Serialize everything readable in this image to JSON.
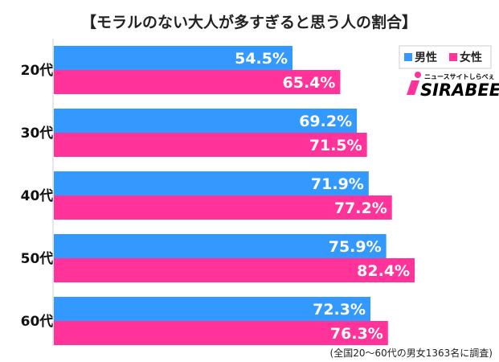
{
  "chart_data": {
    "type": "bar",
    "orientation": "horizontal",
    "title": "【モラルのない大人が多すぎると思う人の割合】",
    "categories": [
      "20代",
      "30代",
      "40代",
      "50代",
      "60代"
    ],
    "series": [
      {
        "name": "男性",
        "color": "#3399ff",
        "values": [
          54.5,
          69.2,
          71.9,
          75.9,
          72.3
        ]
      },
      {
        "name": "女性",
        "color": "#ff3399",
        "values": [
          65.4,
          71.5,
          77.2,
          82.4,
          76.3
        ]
      }
    ],
    "value_suffix": "%",
    "xlim": [
      0,
      100
    ],
    "grid": false,
    "legend_position": "top-right",
    "note": "(全国20〜60代の男女1363名に調査)",
    "logo": {
      "main": "SIRABEE",
      "sub": "ニュースサイトしらべぇ"
    }
  }
}
